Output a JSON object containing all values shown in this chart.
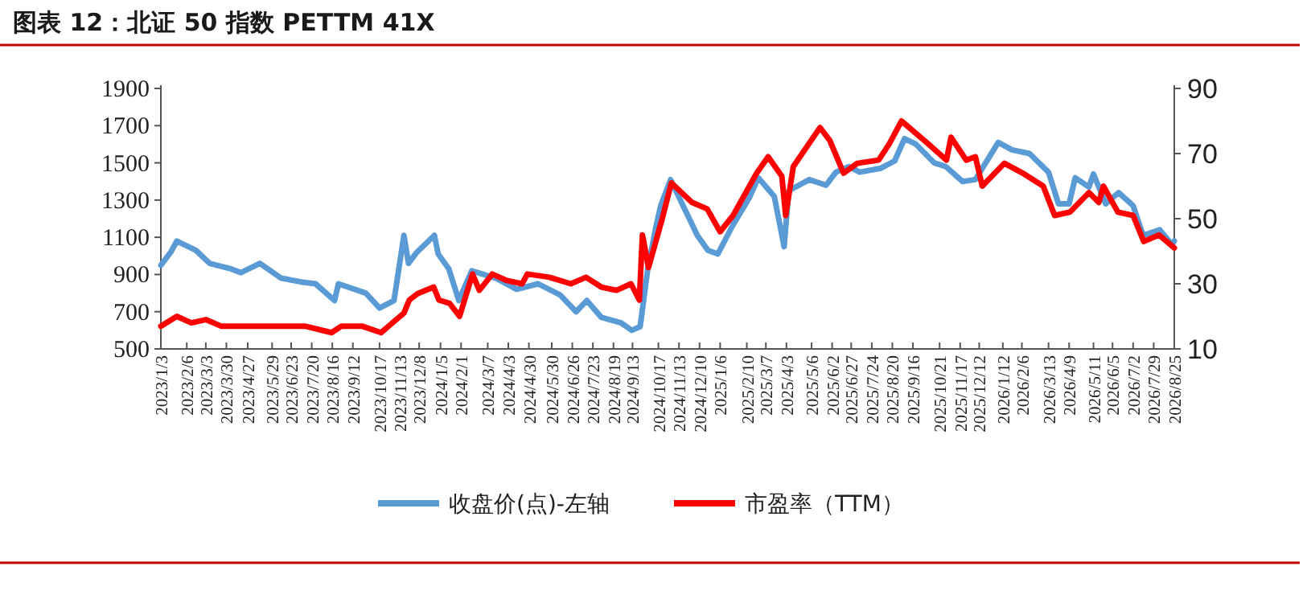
{
  "chart_data": {
    "type": "line",
    "title": "图表 12：北证 50 指数 PETTM 41X",
    "legend": "bottom",
    "xlim": [
      "2023-01-03",
      "2026-08-25"
    ],
    "xticks": [
      {
        "value": "2023-01-03",
        "label": "2023/1/3"
      },
      {
        "value": "2023-02-06",
        "label": "2023/2/6"
      },
      {
        "value": "2023-03-03",
        "label": "2023/3/3"
      },
      {
        "value": "2023-03-30",
        "label": "2023/3/30"
      },
      {
        "value": "2023-04-27",
        "label": "2023/4/27"
      },
      {
        "value": "2023-05-29",
        "label": "2023/5/29"
      },
      {
        "value": "2023-06-23",
        "label": "2023/6/23"
      },
      {
        "value": "2023-07-20",
        "label": "2023/7/20"
      },
      {
        "value": "2023-08-16",
        "label": "2023/8/16"
      },
      {
        "value": "2023-09-12",
        "label": "2023/9/12"
      },
      {
        "value": "2023-10-17",
        "label": "2023/10/17"
      },
      {
        "value": "2023-11-13",
        "label": "2023/11/13"
      },
      {
        "value": "2023-12-08",
        "label": "2023/12/8"
      },
      {
        "value": "2024-01-05",
        "label": "2024/1/5"
      },
      {
        "value": "2024-02-01",
        "label": "2024/2/1"
      },
      {
        "value": "2024-03-07",
        "label": "2024/3/7"
      },
      {
        "value": "2024-04-03",
        "label": "2024/4/3"
      },
      {
        "value": "2024-04-30",
        "label": "2024/4/30"
      },
      {
        "value": "2024-05-30",
        "label": "2024/5/30"
      },
      {
        "value": "2024-06-26",
        "label": "2024/6/26"
      },
      {
        "value": "2024-07-23",
        "label": "2024/7/23"
      },
      {
        "value": "2024-08-19",
        "label": "2024/8/19"
      },
      {
        "value": "2024-09-13",
        "label": "2024/9/13"
      },
      {
        "value": "2024-10-17",
        "label": "2024/10/17"
      },
      {
        "value": "2024-11-13",
        "label": "2024/11/13"
      },
      {
        "value": "2024-12-10",
        "label": "2024/12/10"
      },
      {
        "value": "2025-01-06",
        "label": "2025/1/6"
      },
      {
        "value": "2025-02-10",
        "label": "2025/2/10"
      },
      {
        "value": "2025-03-07",
        "label": "2025/3/7"
      },
      {
        "value": "2025-04-03",
        "label": "2025/4/3"
      },
      {
        "value": "2025-05-06",
        "label": "2025/5/6"
      },
      {
        "value": "2025-06-02",
        "label": "2025/6/2"
      },
      {
        "value": "2025-06-27",
        "label": "2025/6/27"
      },
      {
        "value": "2025-07-24",
        "label": "2025/7/24"
      },
      {
        "value": "2025-08-20",
        "label": "2025/8/20"
      },
      {
        "value": "2025-09-16",
        "label": "2025/9/16"
      },
      {
        "value": "2025-10-21",
        "label": "2025/10/21"
      },
      {
        "value": "2025-11-17",
        "label": "2025/11/17"
      },
      {
        "value": "2025-12-12",
        "label": "2025/12/12"
      },
      {
        "value": "2026-01-12",
        "label": "2026/1/12"
      },
      {
        "value": "2026-02-06",
        "label": "2026/2/6"
      },
      {
        "value": "2026-03-13",
        "label": "2026/3/13"
      },
      {
        "value": "2026-04-09",
        "label": "2026/4/9"
      },
      {
        "value": "2026-05-11",
        "label": "2026/5/11"
      },
      {
        "value": "2026-06-05",
        "label": "2026/6/5"
      },
      {
        "value": "2026-07-02",
        "label": "2026/7/2"
      },
      {
        "value": "2026-07-29",
        "label": "2026/7/29"
      },
      {
        "value": "2026-08-25",
        "label": "2026/8/25"
      }
    ],
    "ylim": [
      500,
      1900
    ],
    "yticks": [
      500,
      700,
      900,
      1100,
      1300,
      1500,
      1700,
      1900
    ],
    "y2lim": [
      10,
      90
    ],
    "y2ticks": [
      10,
      30,
      50,
      70,
      90
    ],
    "series": [
      {
        "name": "收盘价(点)-左轴",
        "color": "#5b9bd5",
        "x": [
          "2023-01-03",
          "2023-01-16",
          "2023-01-24",
          "2023-02-18",
          "2023-03-08",
          "2023-04-05",
          "2023-04-18",
          "2023-05-13",
          "2023-06-10",
          "2023-07-06",
          "2023-07-25",
          "2023-08-19",
          "2023-08-24",
          "2023-09-29",
          "2023-10-17",
          "2023-11-05",
          "2023-11-18",
          "2023-11-24",
          "2023-12-05",
          "2023-12-28",
          "2024-01-02",
          "2024-01-16",
          "2024-01-29",
          "2024-02-15",
          "2024-03-18",
          "2024-04-14",
          "2024-05-12",
          "2024-06-10",
          "2024-07-01",
          "2024-07-15",
          "2024-08-03",
          "2024-08-29",
          "2024-09-12",
          "2024-09-23",
          "2024-10-03",
          "2024-10-14",
          "2024-10-20",
          "2024-11-02",
          "2024-11-16",
          "2024-12-07",
          "2024-12-21",
          "2025-01-03",
          "2025-01-22",
          "2025-02-13",
          "2025-02-25",
          "2025-03-18",
          "2025-03-31",
          "2025-04-06",
          "2025-05-03",
          "2025-05-25",
          "2025-06-07",
          "2025-06-24",
          "2025-07-08",
          "2025-08-04",
          "2025-08-23",
          "2025-09-05",
          "2025-09-20",
          "2025-10-14",
          "2025-10-29",
          "2025-11-20",
          "2025-12-07",
          "2026-01-06",
          "2026-01-24",
          "2026-02-16",
          "2026-03-13",
          "2026-03-26",
          "2026-04-09",
          "2026-04-17",
          "2026-05-05",
          "2026-05-11",
          "2026-05-27",
          "2026-06-13",
          "2026-07-02",
          "2026-07-15",
          "2026-08-06",
          "2026-08-22",
          "2026-08-25"
        ],
        "values": [
          950,
          1020,
          1080,
          1030,
          960,
          930,
          910,
          960,
          880,
          860,
          850,
          760,
          850,
          800,
          720,
          760,
          1110,
          960,
          1020,
          1110,
          1010,
          930,
          760,
          920,
          880,
          820,
          850,
          790,
          700,
          760,
          670,
          640,
          600,
          620,
          930,
          1160,
          1270,
          1410,
          1290,
          1110,
          1030,
          1010,
          1160,
          1310,
          1420,
          1320,
          1050,
          1350,
          1410,
          1380,
          1450,
          1480,
          1450,
          1470,
          1510,
          1630,
          1600,
          1500,
          1480,
          1400,
          1410,
          1610,
          1570,
          1550,
          1450,
          1280,
          1280,
          1420,
          1370,
          1440,
          1280,
          1340,
          1270,
          1110,
          1140,
          1060,
          1080
        ]
      },
      {
        "name": "市盈率（TTM）",
        "color": "#ff0000",
        "axis": "y2",
        "x": [
          "2023-01-03",
          "2023-01-24",
          "2023-02-12",
          "2023-03-03",
          "2023-03-23",
          "2023-04-27",
          "2023-06-13",
          "2023-07-11",
          "2023-08-15",
          "2023-08-28",
          "2023-09-24",
          "2023-10-19",
          "2023-10-29",
          "2023-11-18",
          "2023-11-25",
          "2023-12-06",
          "2023-12-27",
          "2024-01-03",
          "2024-01-17",
          "2024-01-30",
          "2024-02-16",
          "2024-02-25",
          "2024-03-13",
          "2024-04-01",
          "2024-04-21",
          "2024-04-28",
          "2024-05-27",
          "2024-06-24",
          "2024-07-14",
          "2024-08-03",
          "2024-08-23",
          "2024-09-11",
          "2024-09-22",
          "2024-09-26",
          "2024-10-04",
          "2024-10-22",
          "2024-11-03",
          "2024-11-30",
          "2024-12-20",
          "2025-01-06",
          "2025-01-23",
          "2025-02-23",
          "2025-03-10",
          "2025-03-28",
          "2025-04-02",
          "2025-04-12",
          "2025-05-17",
          "2025-05-30",
          "2025-06-17",
          "2025-07-05",
          "2025-08-02",
          "2025-08-16",
          "2025-09-01",
          "2025-10-06",
          "2025-10-30",
          "2025-11-05",
          "2025-11-25",
          "2025-12-07",
          "2025-12-16",
          "2026-01-14",
          "2026-02-07",
          "2026-03-06",
          "2026-03-21",
          "2026-04-10",
          "2026-05-05",
          "2026-05-18",
          "2026-05-24",
          "2026-06-12",
          "2026-07-02",
          "2026-07-16",
          "2026-08-05",
          "2026-08-25"
        ],
        "values": [
          17,
          20,
          18,
          19,
          17,
          17,
          17,
          17,
          15,
          17,
          17,
          15,
          17,
          21,
          25,
          27,
          29,
          25,
          24,
          20,
          33,
          28,
          33,
          31,
          30,
          33,
          32,
          30,
          32,
          29,
          28,
          30,
          25,
          45,
          35,
          50,
          61,
          55,
          53,
          46,
          51,
          64,
          69,
          63,
          51,
          66,
          78,
          74,
          64,
          67,
          68,
          73,
          80,
          73,
          68,
          75,
          68,
          69,
          60,
          67,
          64,
          60,
          51,
          52,
          58,
          55,
          60,
          52,
          51,
          43,
          45,
          41
        ]
      }
    ]
  }
}
